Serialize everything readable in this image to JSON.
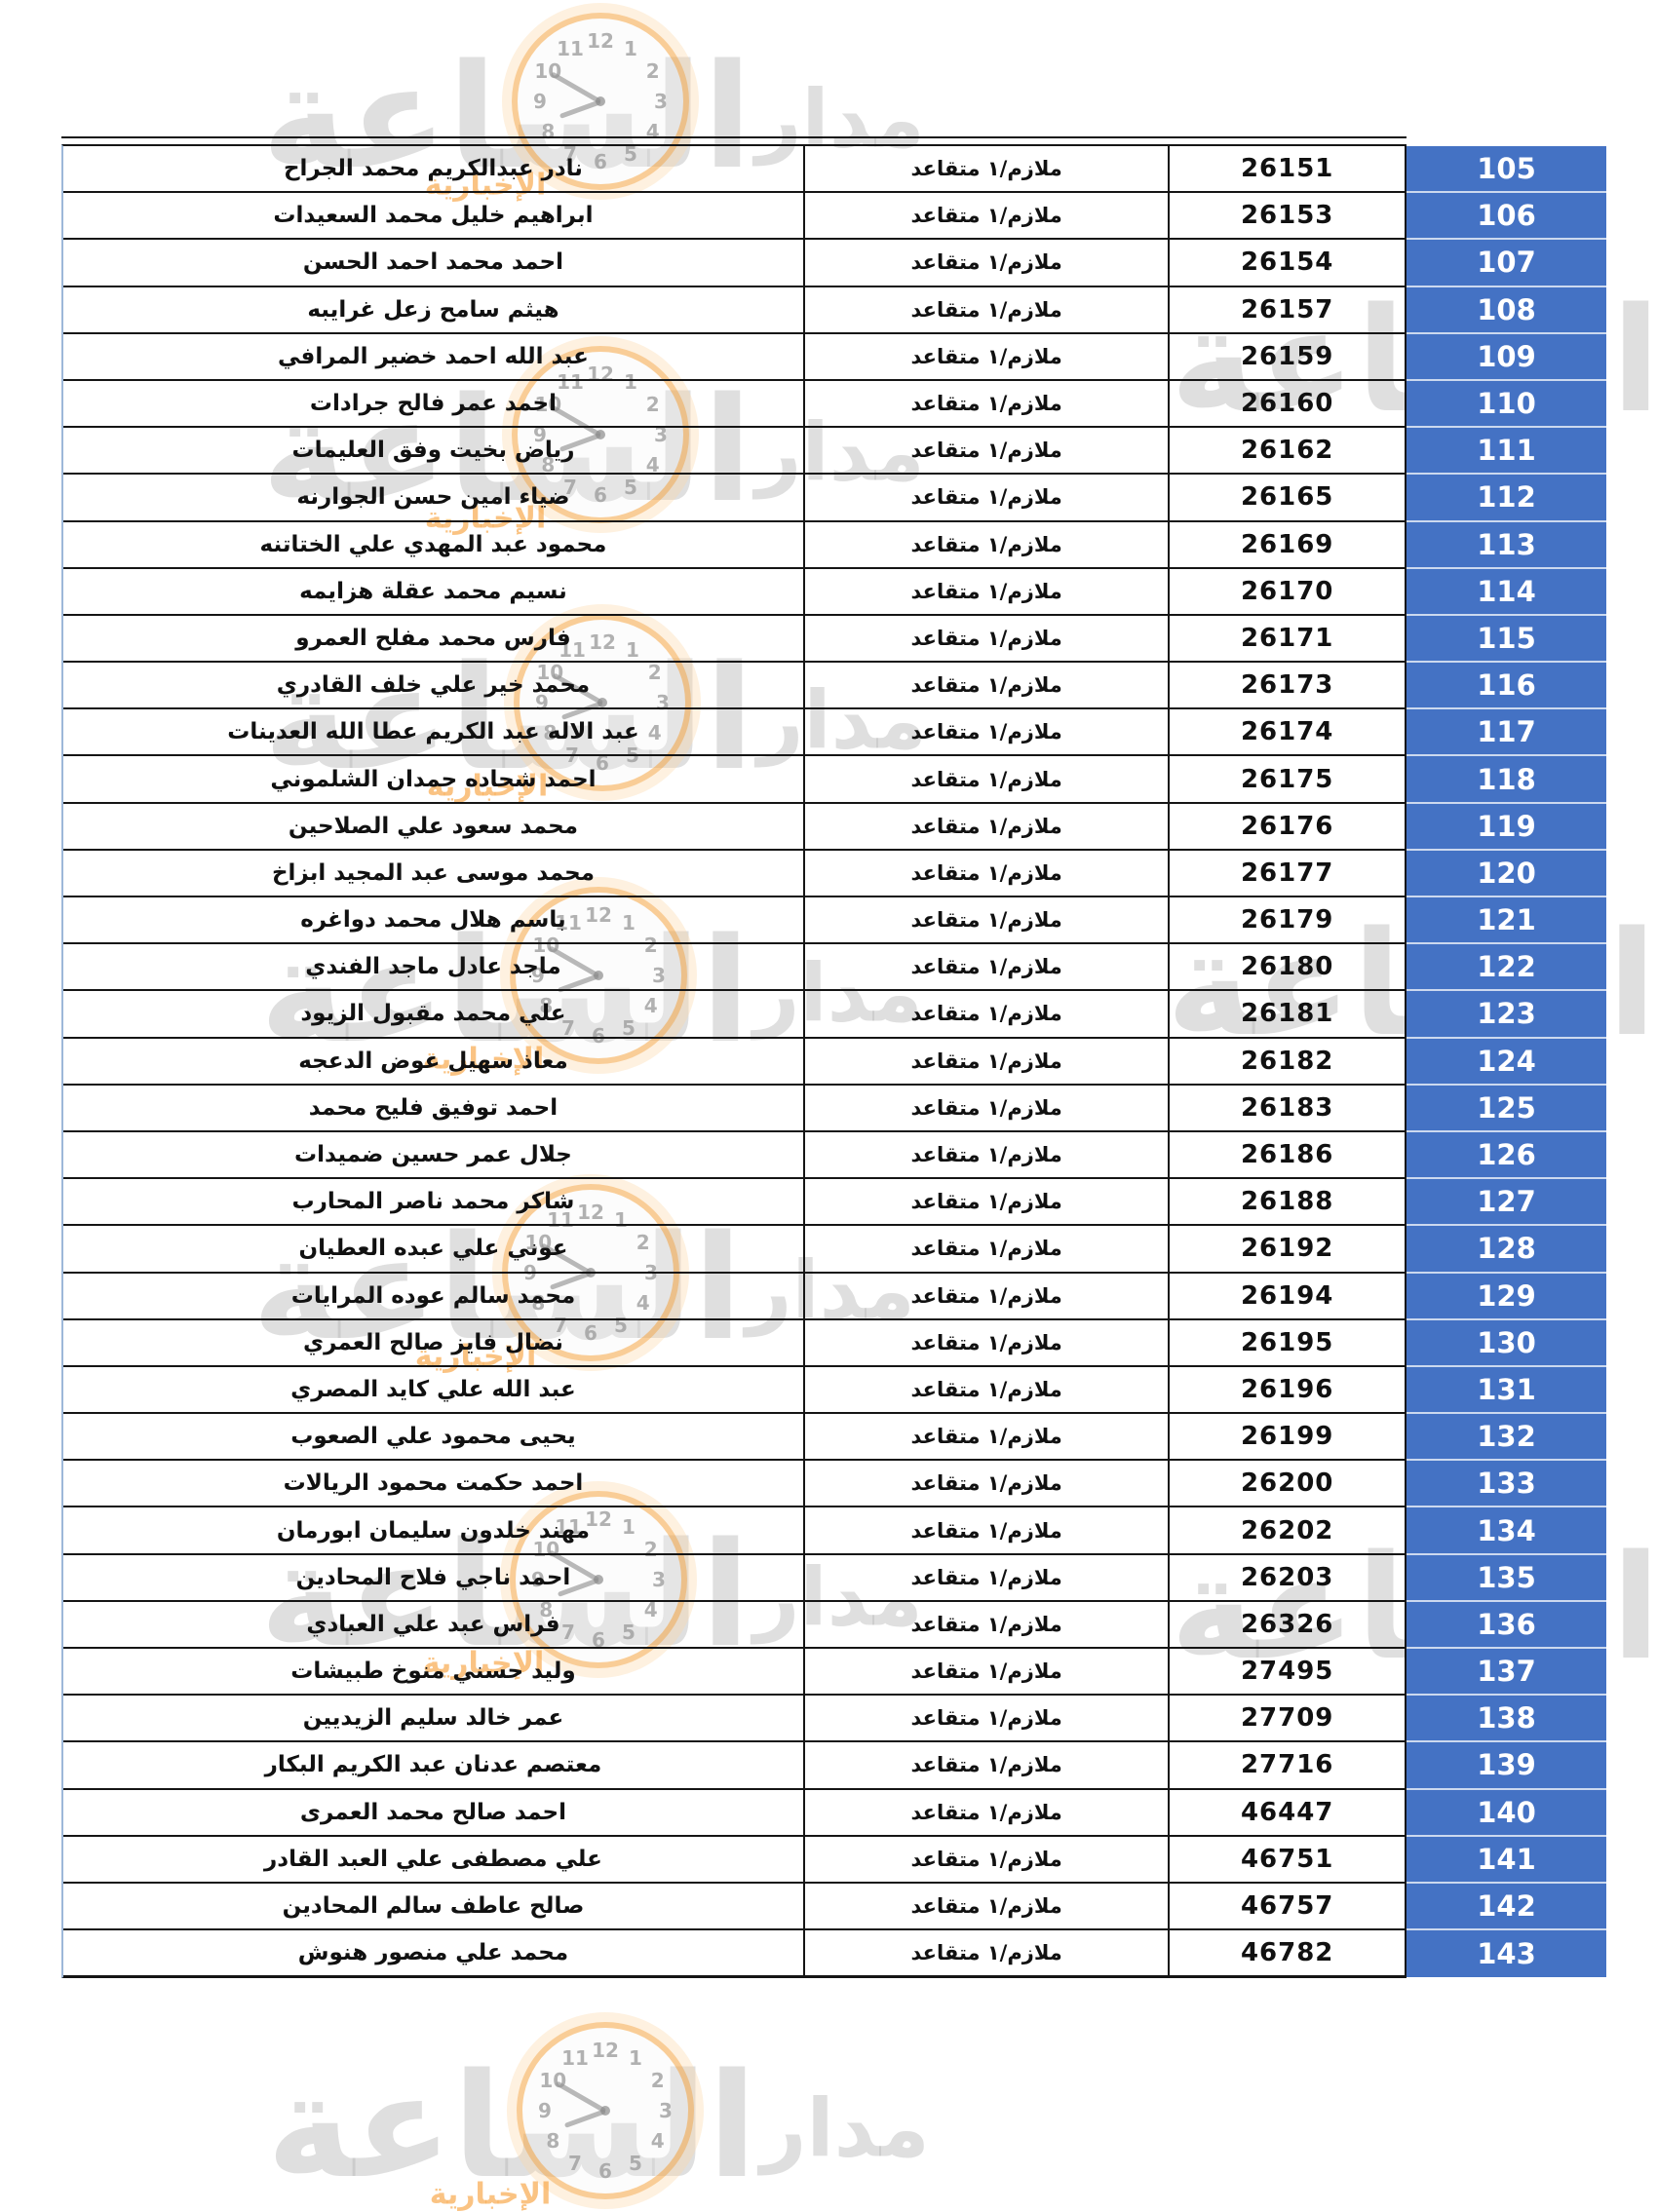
{
  "watermark": {
    "site_big_text": "الساعة",
    "site_word": "مدار",
    "site_sub_text": "الإخبارية",
    "clock_hours": [
      "12",
      "1",
      "2",
      "3",
      "4",
      "5",
      "6",
      "7",
      "8",
      "9",
      "10",
      "11"
    ],
    "orange": "#f6921e",
    "gray": "#bdbdbd"
  },
  "table": {
    "accent_blue": "#4472c4",
    "rank_value": "ملازم/١ متقاعد",
    "rows": [
      {
        "index": "105",
        "name": "نادر عبدالكريم محمد الجراح",
        "serial": "26151"
      },
      {
        "index": "106",
        "name": "ابراهيم خليل محمد السعيدات",
        "serial": "26153"
      },
      {
        "index": "107",
        "name": "احمد محمد احمد الحسن",
        "serial": "26154"
      },
      {
        "index": "108",
        "name": "هيثم سامح زعل غرايبه",
        "serial": "26157"
      },
      {
        "index": "109",
        "name": "عبد الله احمد خضير المرافي",
        "serial": "26159"
      },
      {
        "index": "110",
        "name": "احمد عمر فالح جرادات",
        "serial": "26160"
      },
      {
        "index": "111",
        "name": "رياض بخيت وفق العليمات",
        "serial": "26162"
      },
      {
        "index": "112",
        "name": "ضياء امين حسن الجوارنه",
        "serial": "26165"
      },
      {
        "index": "113",
        "name": "محمود عبد المهدي علي الختاتنه",
        "serial": "26169"
      },
      {
        "index": "114",
        "name": "نسيم محمد عقلة هزايمه",
        "serial": "26170"
      },
      {
        "index": "115",
        "name": "فارس محمد مفلح العمرو",
        "serial": "26171"
      },
      {
        "index": "116",
        "name": "محمد خير علي خلف القادري",
        "serial": "26173"
      },
      {
        "index": "117",
        "name": "عبد الاله عبد الكريم عطا الله العدينات",
        "serial": "26174"
      },
      {
        "index": "118",
        "name": "احمد شحاده حمدان الشلموني",
        "serial": "26175"
      },
      {
        "index": "119",
        "name": "محمد سعود علي الصلاحين",
        "serial": "26176"
      },
      {
        "index": "120",
        "name": "محمد موسى عبد المجيد ابزاخ",
        "serial": "26177"
      },
      {
        "index": "121",
        "name": "باسم هلال محمد دواغره",
        "serial": "26179"
      },
      {
        "index": "122",
        "name": "ماجد عادل ماجد الفندي",
        "serial": "26180"
      },
      {
        "index": "123",
        "name": "علي محمد مقبول الزيود",
        "serial": "26181"
      },
      {
        "index": "124",
        "name": "معاذ سهيل عوض الدعجه",
        "serial": "26182"
      },
      {
        "index": "125",
        "name": "احمد توفيق فليح محمد",
        "serial": "26183"
      },
      {
        "index": "126",
        "name": "جلال عمر حسين ضميدات",
        "serial": "26186"
      },
      {
        "index": "127",
        "name": "شاكر محمد ناصر المحارب",
        "serial": "26188"
      },
      {
        "index": "128",
        "name": "عوني علي عبده العطيان",
        "serial": "26192"
      },
      {
        "index": "129",
        "name": "محمد سالم عوده المرايات",
        "serial": "26194"
      },
      {
        "index": "130",
        "name": "نضال فايز صالح العمري",
        "serial": "26195"
      },
      {
        "index": "131",
        "name": "عبد الله علي كايد المصري",
        "serial": "26196"
      },
      {
        "index": "132",
        "name": "يحيى محمود علي الصعوب",
        "serial": "26199"
      },
      {
        "index": "133",
        "name": "احمد حكمت محمود الريالات",
        "serial": "26200"
      },
      {
        "index": "134",
        "name": "مهند خلدون سليمان ابورمان",
        "serial": "26202"
      },
      {
        "index": "135",
        "name": "احمد ناجي فلاح المحادين",
        "serial": "26203"
      },
      {
        "index": "136",
        "name": "فراس عبد علي العبادي",
        "serial": "26326"
      },
      {
        "index": "137",
        "name": "وليد حسني منوخ طبيشات",
        "serial": "27495"
      },
      {
        "index": "138",
        "name": "عمر خالد سليم الزيديين",
        "serial": "27709"
      },
      {
        "index": "139",
        "name": "معتصم عدنان عبد الكريم البكار",
        "serial": "27716"
      },
      {
        "index": "140",
        "name": "احمد صالح محمد العمرى",
        "serial": "46447"
      },
      {
        "index": "141",
        "name": "علي مصطفى علي العبد القادر",
        "serial": "46751"
      },
      {
        "index": "142",
        "name": "صالح عاطف سالم المحادين",
        "serial": "46757"
      },
      {
        "index": "143",
        "name": "محمد علي منصور هنوش",
        "serial": "46782"
      }
    ]
  }
}
